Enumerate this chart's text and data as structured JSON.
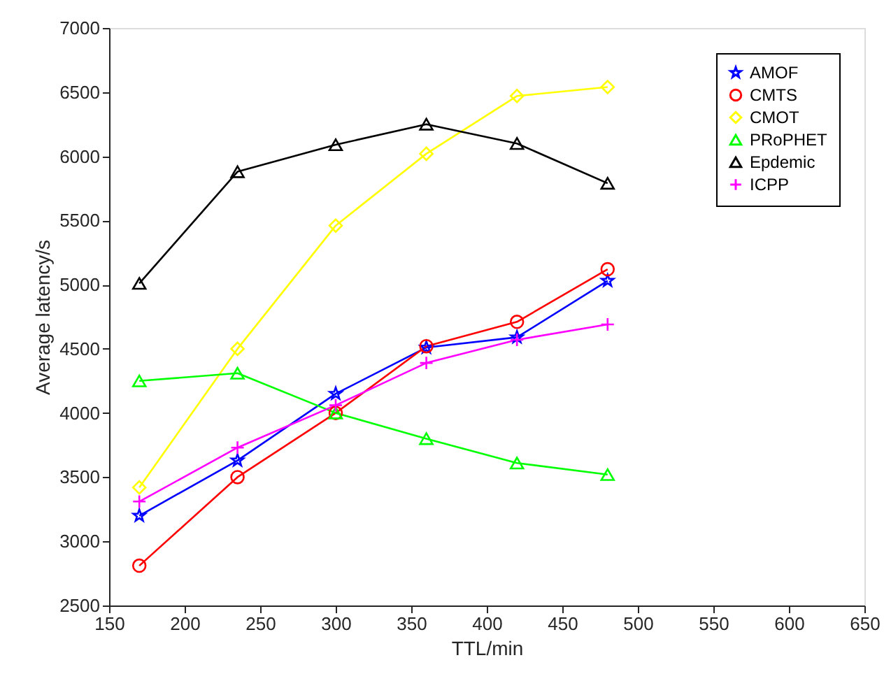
{
  "chart_data": {
    "type": "line",
    "xlabel": "TTL/min",
    "ylabel": "Average latency/s",
    "x": [
      170,
      235,
      300,
      360,
      420,
      480
    ],
    "series": [
      {
        "name": "AMOF",
        "color": "#0000ff",
        "marker": "star",
        "values": [
          3200,
          3630,
          4150,
          4510,
          4590,
          5030
        ]
      },
      {
        "name": "CMTS",
        "color": "#ff0000",
        "marker": "circle",
        "values": [
          2810,
          3500,
          4000,
          4520,
          4710,
          5120
        ]
      },
      {
        "name": "CMOT",
        "color": "#ffff00",
        "marker": "diamond",
        "values": [
          3420,
          4500,
          5460,
          6020,
          6470,
          6540
        ]
      },
      {
        "name": "PRoPHET",
        "color": "#00ff00",
        "marker": "triangle",
        "values": [
          4250,
          4310,
          4000,
          3800,
          3610,
          3520
        ]
      },
      {
        "name": "Epdemic",
        "color": "#000000",
        "marker": "triangle",
        "values": [
          5010,
          5880,
          6090,
          6250,
          6100,
          5790
        ]
      },
      {
        "name": "ICPP",
        "color": "#ff00ff",
        "marker": "cross",
        "values": [
          3310,
          3730,
          4060,
          4390,
          4570,
          4690
        ]
      }
    ],
    "xlim": [
      150,
      650
    ],
    "xticks": [
      150,
      200,
      250,
      300,
      350,
      400,
      450,
      500,
      550,
      600,
      650
    ],
    "ylim": [
      2500,
      7000
    ],
    "yticks": [
      2500,
      3000,
      3500,
      4000,
      4500,
      5000,
      5500,
      6000,
      6500,
      7000
    ],
    "grid": false,
    "legend": "top right",
    "line_style": "solid"
  }
}
